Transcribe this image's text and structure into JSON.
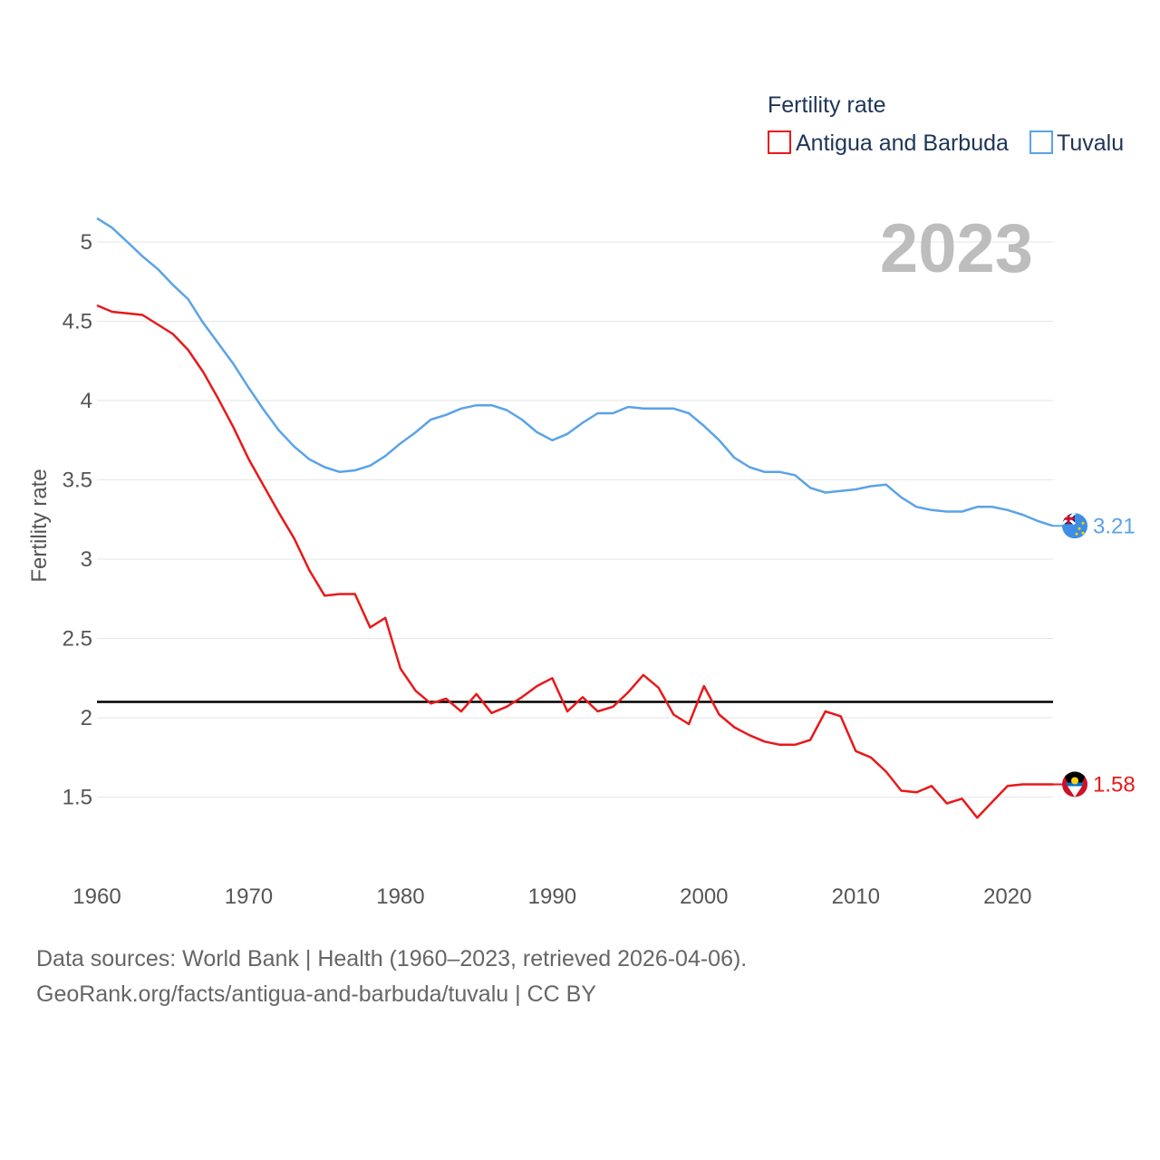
{
  "legend": {
    "title": "Fertility rate",
    "items": [
      {
        "label": "Antigua and Barbuda",
        "color": "#e8191a"
      },
      {
        "label": "Tuvalu",
        "color": "#5aa3e8"
      }
    ]
  },
  "year_display": "2023",
  "footer": {
    "source": "Data sources: World Bank | Health (1960–2023, retrieved 2026-04-06).",
    "url": "GeoRank.org/facts/antigua-and-barbuda/tuvalu | CC BY"
  },
  "chart_data": {
    "type": "line",
    "title": "Fertility rate",
    "xlabel": "",
    "ylabel": "Fertility rate",
    "xlim": [
      1960,
      2023
    ],
    "ylim": [
      1.2,
      5.2
    ],
    "xticks": [
      1960,
      1970,
      1980,
      1990,
      2000,
      2010,
      2020
    ],
    "xtick_labels": [
      "1960",
      "1970",
      "1980",
      "1990",
      "2000",
      "2010",
      "2020"
    ],
    "yticks": [
      1.5,
      2,
      2.5,
      3,
      3.5,
      4,
      4.5,
      5
    ],
    "ytick_labels": [
      "1.5",
      "2",
      "2.5",
      "3",
      "3.5",
      "4",
      "4.5",
      "5"
    ],
    "reference_line": {
      "y": 2.1,
      "color": "#000000"
    },
    "x": [
      1960,
      1961,
      1962,
      1963,
      1964,
      1965,
      1966,
      1967,
      1968,
      1969,
      1970,
      1971,
      1972,
      1973,
      1974,
      1975,
      1976,
      1977,
      1978,
      1979,
      1980,
      1981,
      1982,
      1983,
      1984,
      1985,
      1986,
      1987,
      1988,
      1989,
      1990,
      1991,
      1992,
      1993,
      1994,
      1995,
      1996,
      1997,
      1998,
      1999,
      2000,
      2001,
      2002,
      2003,
      2004,
      2005,
      2006,
      2007,
      2008,
      2009,
      2010,
      2011,
      2012,
      2013,
      2014,
      2015,
      2016,
      2017,
      2018,
      2019,
      2020,
      2021,
      2022,
      2023
    ],
    "series": [
      {
        "name": "Antigua and Barbuda",
        "color": "#e8191a",
        "end_label": "1.58",
        "values": [
          4.6,
          4.56,
          4.55,
          4.54,
          4.48,
          4.42,
          4.32,
          4.18,
          4.01,
          3.83,
          3.63,
          3.46,
          3.29,
          3.13,
          2.93,
          2.77,
          2.78,
          2.78,
          2.57,
          2.63,
          2.31,
          2.17,
          2.09,
          2.12,
          2.04,
          2.15,
          2.03,
          2.07,
          2.13,
          2.2,
          2.25,
          2.04,
          2.13,
          2.04,
          2.07,
          2.16,
          2.27,
          2.19,
          2.02,
          1.96,
          2.2,
          2.02,
          1.94,
          1.89,
          1.85,
          1.83,
          1.83,
          1.86,
          2.04,
          2.01,
          1.79,
          1.75,
          1.66,
          1.54,
          1.53,
          1.57,
          1.46,
          1.49,
          1.37,
          1.47,
          1.57,
          1.58,
          1.58,
          1.58
        ]
      },
      {
        "name": "Tuvalu",
        "color": "#5aa3e8",
        "end_label": "3.21",
        "values": [
          5.15,
          5.09,
          5.0,
          4.91,
          4.83,
          4.73,
          4.64,
          4.49,
          4.36,
          4.23,
          4.08,
          3.94,
          3.81,
          3.71,
          3.63,
          3.58,
          3.55,
          3.56,
          3.59,
          3.65,
          3.73,
          3.8,
          3.88,
          3.91,
          3.95,
          3.97,
          3.97,
          3.94,
          3.88,
          3.8,
          3.75,
          3.79,
          3.86,
          3.92,
          3.92,
          3.96,
          3.95,
          3.95,
          3.95,
          3.92,
          3.84,
          3.75,
          3.64,
          3.58,
          3.55,
          3.55,
          3.53,
          3.45,
          3.42,
          3.43,
          3.44,
          3.46,
          3.47,
          3.39,
          3.33,
          3.31,
          3.3,
          3.3,
          3.33,
          3.33,
          3.31,
          3.28,
          3.24,
          3.21
        ]
      }
    ]
  }
}
